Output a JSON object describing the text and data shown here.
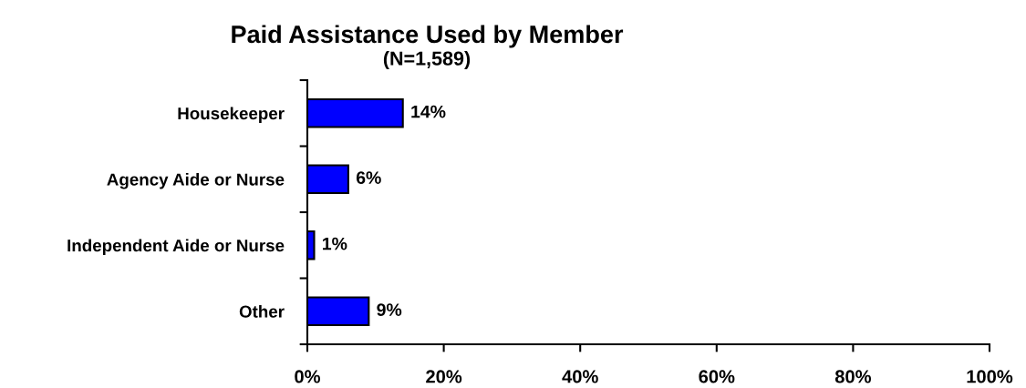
{
  "chart_data": {
    "type": "bar",
    "orientation": "horizontal",
    "title": "Paid Assistance Used by Member",
    "subtitle": "(N=1,589)",
    "categories": [
      "Housekeeper",
      "Agency Aide or Nurse",
      "Independent Aide or Nurse",
      "Other"
    ],
    "values": [
      14,
      6,
      1,
      9
    ],
    "value_labels": [
      "14%",
      "6%",
      "1%",
      "9%"
    ],
    "color": "#0000ff",
    "xlim": [
      0,
      100
    ],
    "xticks": [
      {
        "value": 0,
        "label": "0%"
      },
      {
        "value": 20,
        "label": "20%"
      },
      {
        "value": 40,
        "label": "40%"
      },
      {
        "value": 60,
        "label": "60%"
      },
      {
        "value": 80,
        "label": "80%"
      },
      {
        "value": 100,
        "label": "100%"
      }
    ],
    "grid": false,
    "legend": false
  }
}
